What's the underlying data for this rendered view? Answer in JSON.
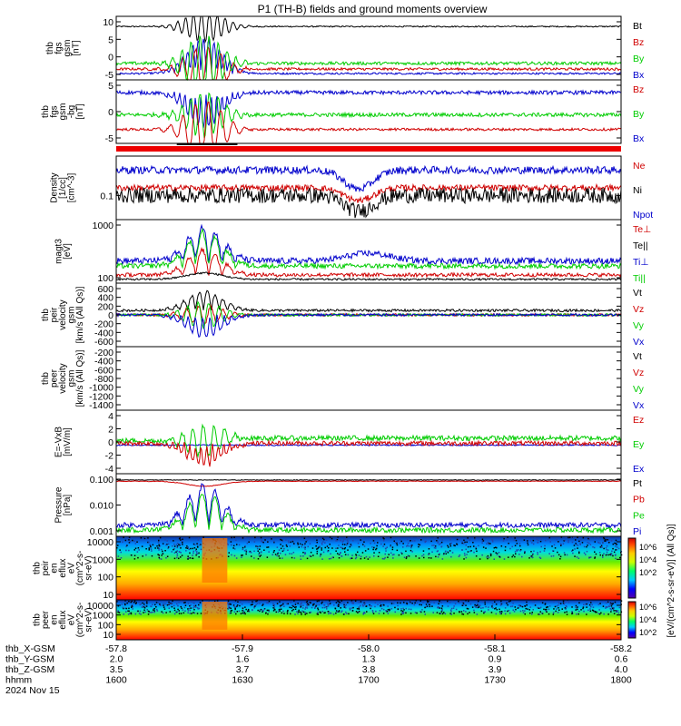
{
  "title": "P1 (TH-B) fields and ground moments overview",
  "chart_data": {
    "type": "line",
    "panels": [
      {
        "ylabel": [
          "thb",
          "fgs",
          "gsm",
          "[nT]"
        ],
        "yticks": [
          "10",
          "5",
          "0",
          "-5"
        ],
        "legend": [
          "Bt",
          "Bz",
          "By",
          "Bx"
        ],
        "legend_colors": [
          "#000000",
          "#d00000",
          "#00cc00",
          "#0000cc"
        ]
      },
      {
        "ylabel": [
          "thb",
          "fgs",
          "gsm",
          "-bg",
          "[nT]"
        ],
        "yticks": [
          "5",
          "0",
          "-5"
        ],
        "legend": [
          "Bz",
          "By",
          "Bx"
        ],
        "legend_colors": [
          "#d00000",
          "#00cc00",
          "#0000cc"
        ]
      },
      {
        "ylabel": [
          "Density",
          "[1/cc]",
          "[cm^-3]"
        ],
        "yticks": [
          "0.1"
        ],
        "legend": [
          "Ne",
          "Ni",
          "Npot"
        ],
        "legend_colors": [
          "#d00000",
          "#000000",
          "#0000cc"
        ],
        "ylog": true
      },
      {
        "ylabel": [
          "magt3",
          "[eV]"
        ],
        "yticks": [
          "1000",
          "100"
        ],
        "legend": [
          "Te⊥",
          "Te||",
          "Ti⊥",
          "Ti||"
        ],
        "legend_colors": [
          "#d00000",
          "#000000",
          "#0000cc",
          "#00cc00"
        ],
        "ylog": true
      },
      {
        "ylabel": [
          "thb",
          "peir",
          "velocity",
          "gsm",
          "[km/s (All Qs)]"
        ],
        "yticks": [
          "600",
          "400",
          "200",
          "0",
          "-200",
          "-400",
          "-600"
        ],
        "legend": [
          "Vt",
          "Vz",
          "Vy",
          "Vx"
        ],
        "legend_colors": [
          "#000000",
          "#d00000",
          "#00cc00",
          "#0000cc"
        ]
      },
      {
        "ylabel": [
          "thb",
          "peer",
          "velocity",
          "gsm",
          "[km/s (All Qs)]"
        ],
        "yticks": [
          "-200",
          "-400",
          "-600",
          "-800",
          "-1000",
          "-1200",
          "-1400"
        ],
        "legend": [
          "Vt",
          "Vz",
          "Vy",
          "Vx"
        ],
        "legend_colors": [
          "#000000",
          "#d00000",
          "#00cc00",
          "#0000cc"
        ]
      },
      {
        "ylabel": [
          "E=-VxB",
          "[mV/m]"
        ],
        "yticks": [
          "4",
          "2",
          "0",
          "-2",
          "-4"
        ],
        "legend": [
          "Ez",
          "Ey",
          "Ex"
        ],
        "legend_colors": [
          "#d00000",
          "#00cc00",
          "#0000cc"
        ]
      },
      {
        "ylabel": [
          "Pressure",
          "[nPa]"
        ],
        "yticks": [
          "0.100",
          "0.010",
          "0.001"
        ],
        "legend": [
          "Pt",
          "Pb",
          "Pe",
          "Pi"
        ],
        "legend_colors": [
          "#000000",
          "#d00000",
          "#00cc00",
          "#0000cc"
        ],
        "ylog": true
      },
      {
        "ylabel": [
          "thb",
          "peir",
          "en",
          "eflux",
          "eV",
          "(cm^2-s-",
          "sr-eV)"
        ],
        "yticks": [
          "10000",
          "1000",
          "100",
          "10"
        ],
        "type": "heatmap"
      },
      {
        "ylabel": [
          "thb",
          "peer",
          "en",
          "eflux",
          "eV",
          "(cm^2-s-",
          "sr-eV)"
        ],
        "yticks": [
          "10000",
          "1000",
          "100",
          "10"
        ],
        "type": "heatmap"
      }
    ],
    "colorbar_ticks": [
      "10^6",
      "10^4",
      "10^2",
      "10^6",
      "10^4",
      "10^2"
    ],
    "colorbar_label": "[eV/(cm^2-s-sr-eV)] (All Qs)]",
    "x_axis": {
      "row_labels": [
        "thb_X-GSM",
        "thb_Y-GSM",
        "thb_Z-GSM",
        "hhmm",
        "2024 Nov 15"
      ],
      "ticks": [
        {
          "x": "-57.8",
          "y": "2.0",
          "z": "3.5",
          "t": "1600"
        },
        {
          "x": "-57.9",
          "y": "1.6",
          "z": "3.7",
          "t": "1630"
        },
        {
          "x": "-58.0",
          "y": "1.3",
          "z": "3.8",
          "t": "1700"
        },
        {
          "x": "-58.1",
          "y": "0.9",
          "z": "3.9",
          "t": "1730"
        },
        {
          "x": "-58.2",
          "y": "0.6",
          "z": "4.0",
          "t": "1800"
        }
      ]
    }
  }
}
